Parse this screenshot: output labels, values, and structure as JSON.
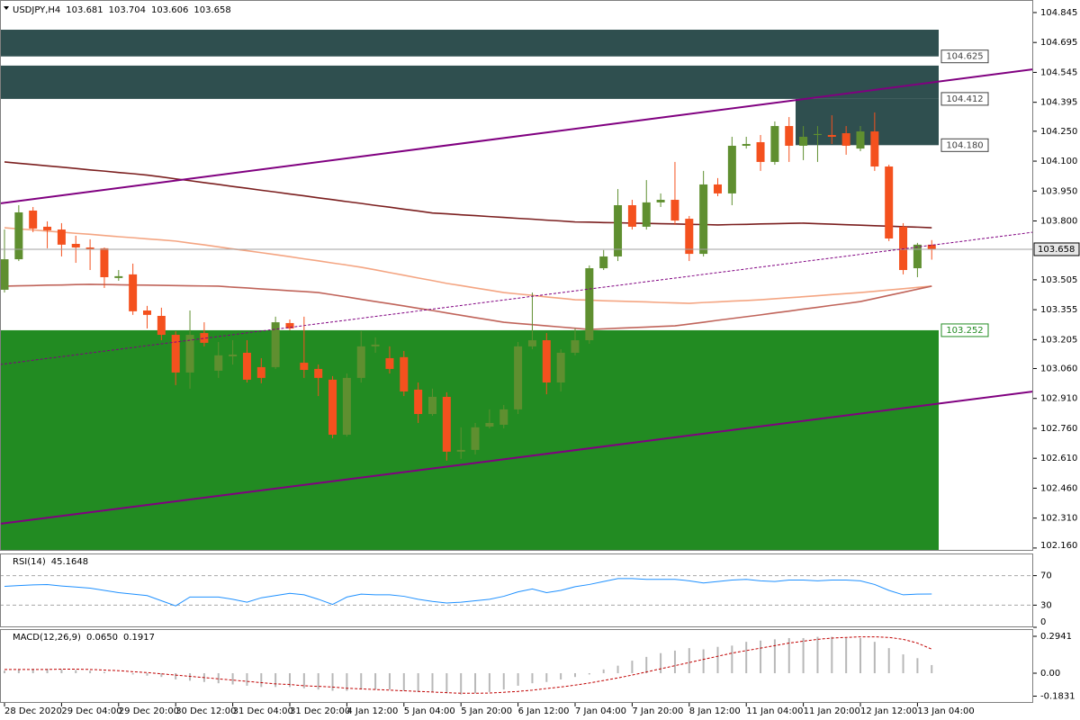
{
  "chart_data": [
    {
      "type": "candlestick",
      "title": "USDJPY,H4",
      "categories": [
        "28 Dec 2020",
        null,
        null,
        null,
        "29 Dec 04:00",
        null,
        null,
        null,
        "29 Dec 20:00",
        null,
        null,
        null,
        "30 Dec 12:00",
        null,
        null,
        null,
        "31 Dec 04:00",
        null,
        null,
        null,
        "31 Dec 20:00",
        null,
        null,
        null,
        "4 Jan 12:00",
        null,
        null,
        null,
        "5 Jan 04:00",
        null,
        null,
        null,
        "5 Jan 20:00",
        null,
        null,
        null,
        "6 Jan 12:00",
        null,
        null,
        null,
        "7 Jan 04:00",
        null,
        null,
        null,
        "7 Jan 20:00",
        null,
        null,
        null,
        "8 Jan 12:00",
        null,
        null,
        null,
        "11 Jan 04:00",
        null,
        null,
        null,
        "11 Jan 20:00",
        null,
        null,
        null,
        "12 Jan 12:00",
        null,
        null,
        null,
        "13 Jan 04:00",
        null
      ],
      "open": [
        103.455,
        103.608,
        103.852,
        103.771,
        103.757,
        103.685,
        103.667,
        103.663,
        103.514,
        103.532,
        103.351,
        103.324,
        103.229,
        103.04,
        103.238,
        103.049,
        103.121,
        103.139,
        103.067,
        103.067,
        103.288,
        103.089,
        103.058,
        103.004,
        102.728,
        103.013,
        103.171,
        103.112,
        103.117,
        102.954,
        102.832,
        102.918,
        102.643,
        102.652,
        102.769,
        102.778,
        102.855,
        103.171,
        103.202,
        102.99,
        103.139,
        103.202,
        103.563,
        103.622,
        103.879,
        103.771,
        103.893,
        103.906,
        103.811,
        103.635,
        103.983,
        103.938,
        104.177,
        104.195,
        104.096,
        104.276,
        104.177,
        104.231,
        104.231,
        104.24,
        104.163,
        104.249,
        104.073,
        103.771,
        103.563,
        103.681
      ],
      "high": [
        103.757,
        103.879,
        103.87,
        103.798,
        103.789,
        103.726,
        103.708,
        103.667,
        103.554,
        103.586,
        103.374,
        103.365,
        103.247,
        103.351,
        103.292,
        103.193,
        103.202,
        103.202,
        103.112,
        103.32,
        103.306,
        103.32,
        103.08,
        103.022,
        103.035,
        103.247,
        103.216,
        103.171,
        103.148,
        102.99,
        102.959,
        102.941,
        102.765,
        102.787,
        102.855,
        102.877,
        103.193,
        103.441,
        103.238,
        103.157,
        103.261,
        103.577,
        103.654,
        103.96,
        103.906,
        104.005,
        103.938,
        104.096,
        103.825,
        104.051,
        104.015,
        104.222,
        104.222,
        104.231,
        104.299,
        104.321,
        104.276,
        104.276,
        104.33,
        104.276,
        104.276,
        104.344,
        104.082,
        103.789,
        103.69,
        103.704
      ],
      "low": [
        103.441,
        103.599,
        103.744,
        103.663,
        103.622,
        103.59,
        103.554,
        103.464,
        103.5,
        103.329,
        103.261,
        103.202,
        102.977,
        102.959,
        103.171,
        103.013,
        103.08,
        102.99,
        102.986,
        103.058,
        103.252,
        103.013,
        102.922,
        102.71,
        102.719,
        102.99,
        103.139,
        103.035,
        102.922,
        102.787,
        102.823,
        102.598,
        102.607,
        102.629,
        102.76,
        102.76,
        102.832,
        103.157,
        102.931,
        102.945,
        103.126,
        103.184,
        103.554,
        103.599,
        103.757,
        103.757,
        103.87,
        103.78,
        103.599,
        103.622,
        103.924,
        103.879,
        104.163,
        104.051,
        104.082,
        104.096,
        104.105,
        104.096,
        104.186,
        104.132,
        104.15,
        104.051,
        103.699,
        103.532,
        103.518,
        103.606
      ],
      "close": [
        103.608,
        103.843,
        103.762,
        103.753,
        103.681,
        103.667,
        103.658,
        103.518,
        103.523,
        103.347,
        103.329,
        103.229,
        103.04,
        103.229,
        103.189,
        103.126,
        103.13,
        103.004,
        103.013,
        103.292,
        103.261,
        103.053,
        103.013,
        102.728,
        103.013,
        103.171,
        103.18,
        103.058,
        102.945,
        102.832,
        102.918,
        102.643,
        102.652,
        102.765,
        102.787,
        102.855,
        103.171,
        103.202,
        102.99,
        103.139,
        103.202,
        103.563,
        103.622,
        103.879,
        103.771,
        103.893,
        103.906,
        103.802,
        103.635,
        103.983,
        103.938,
        104.177,
        104.186,
        104.096,
        104.276,
        104.177,
        104.222,
        104.236,
        104.222,
        104.177,
        104.249,
        104.073,
        103.712,
        103.554,
        103.681,
        103.658
      ],
      "up_color": "#5f8f30",
      "down_color": "#f4511e",
      "series": [
        {
          "color": "#7b1f1f",
          "values": [
            104.096,
            104.089,
            104.083,
            104.076,
            104.07,
            104.063,
            104.056,
            104.05,
            104.043,
            104.037,
            104.03,
            104.021,
            104.011,
            104.002,
            103.992,
            103.983,
            103.973,
            103.964,
            103.954,
            103.945,
            103.935,
            103.926,
            103.916,
            103.907,
            103.897,
            103.888,
            103.878,
            103.869,
            103.859,
            103.85,
            103.84,
            103.836,
            103.831,
            103.827,
            103.822,
            103.818,
            103.813,
            103.809,
            103.804,
            103.8,
            103.795,
            103.794,
            103.792,
            103.791,
            103.789,
            103.788,
            103.786,
            103.785,
            103.783,
            103.782,
            103.78,
            103.782,
            103.783,
            103.785,
            103.786,
            103.788,
            103.789,
            103.786,
            103.784,
            103.781,
            103.779,
            103.776,
            103.774,
            103.771,
            103.769,
            103.766
          ]
        },
        {
          "color": "#f4a582",
          "values": [
            103.766,
            103.76,
            103.755,
            103.749,
            103.744,
            103.738,
            103.733,
            103.727,
            103.721,
            103.716,
            103.71,
            103.705,
            103.699,
            103.689,
            103.68,
            103.67,
            103.66,
            103.651,
            103.641,
            103.631,
            103.621,
            103.61,
            103.6,
            103.589,
            103.579,
            103.568,
            103.555,
            103.541,
            103.528,
            103.514,
            103.501,
            103.487,
            103.476,
            103.464,
            103.453,
            103.441,
            103.434,
            103.427,
            103.419,
            103.412,
            103.405,
            103.403,
            103.4,
            103.398,
            103.396,
            103.394,
            103.391,
            103.389,
            103.387,
            103.391,
            103.394,
            103.398,
            103.401,
            103.405,
            103.41,
            103.415,
            103.42,
            103.425,
            103.431,
            103.436,
            103.441,
            103.447,
            103.454,
            103.46,
            103.467,
            103.473
          ]
        },
        {
          "color": "#c0645a",
          "values": [
            103.473,
            103.475,
            103.476,
            103.478,
            103.479,
            103.481,
            103.482,
            103.481,
            103.48,
            103.479,
            103.478,
            103.477,
            103.476,
            103.475,
            103.474,
            103.473,
            103.468,
            103.464,
            103.459,
            103.455,
            103.45,
            103.446,
            103.441,
            103.43,
            103.419,
            103.407,
            103.396,
            103.385,
            103.374,
            103.362,
            103.351,
            103.339,
            103.327,
            103.315,
            103.304,
            103.292,
            103.286,
            103.28,
            103.274,
            103.268,
            103.262,
            103.256,
            103.259,
            103.262,
            103.265,
            103.268,
            103.271,
            103.274,
            103.283,
            103.292,
            103.302,
            103.311,
            103.32,
            103.329,
            103.339,
            103.348,
            103.358,
            103.367,
            103.377,
            103.386,
            103.396,
            103.411,
            103.427,
            103.442,
            103.458,
            103.473
          ]
        }
      ],
      "zones": [
        {
          "top": 104.759,
          "bottom": 104.625,
          "color": "#2f4f4f"
        },
        {
          "top": 104.579,
          "bottom": 104.412,
          "color": "#2f4f4f"
        },
        {
          "top": 104.412,
          "bottom": 104.18,
          "color": "#2f4f4f"
        },
        {
          "top": 103.252,
          "bottom": 102.146,
          "color": "#228b22"
        }
      ],
      "levels": [
        104.625,
        104.412,
        {
          "value": 104.18,
          "label": "104.180"
        },
        103.252
      ],
      "level_colors": [
        "#404040",
        "#404040",
        "#404040",
        "#228b22"
      ],
      "ylim": [
        102.146,
        104.908
      ],
      "yticks": [
        {
          "value": 102.16,
          "label": "102.160"
        },
        {
          "value": 102.31,
          "label": "102.310"
        },
        {
          "value": 102.46,
          "label": "102.460"
        },
        {
          "value": 102.61,
          "label": "102.610"
        },
        {
          "value": 102.76,
          "label": "102.760"
        },
        {
          "value": 102.91,
          "label": "102.910"
        },
        {
          "value": 103.06,
          "label": "103.060"
        },
        103.205,
        103.355,
        103.505,
        {
          "value": 103.8,
          "label": "103.800"
        },
        {
          "value": 103.95,
          "label": "103.950"
        },
        {
          "value": 104.1,
          "label": "104.100"
        },
        {
          "value": 104.25,
          "label": "104.250"
        },
        104.395,
        104.545,
        104.695,
        104.845
      ]
    },
    {
      "type": "line",
      "title": "RSI(14)",
      "series": [
        {
          "color": "#1e90ff",
          "values": [
            55.5,
            56.5,
            57.5,
            57.9,
            56,
            54.5,
            53,
            50,
            47,
            45,
            43,
            36,
            29,
            41,
            41,
            41,
            38,
            34,
            40,
            43,
            46,
            44,
            38,
            31,
            41,
            45,
            44,
            44,
            42,
            38,
            35,
            33,
            34,
            36,
            38,
            42,
            48,
            52,
            47,
            50,
            55,
            58,
            62,
            66,
            66,
            65,
            65,
            65,
            63,
            60,
            62,
            64,
            65,
            63,
            62,
            64,
            64,
            63,
            64,
            64,
            63,
            58,
            50,
            44,
            45,
            45.1648
          ]
        }
      ],
      "ylim": [
        0,
        100
      ],
      "yticks": [
        0,
        30,
        70
      ],
      "grid": true
    },
    {
      "type": "macd",
      "title": "MACD(12,26,9)",
      "series": [
        {
          "style": "histogram",
          "color": "#b8b8b8",
          "values": [
            0.02,
            0.03,
            0.035,
            0.035,
            0.03,
            0.025,
            0.02,
            0.01,
            0.0,
            -0.01,
            -0.02,
            -0.03,
            -0.05,
            -0.06,
            -0.07,
            -0.08,
            -0.09,
            -0.1,
            -0.11,
            -0.11,
            -0.11,
            -0.12,
            -0.13,
            -0.14,
            -0.14,
            -0.13,
            -0.13,
            -0.13,
            -0.14,
            -0.15,
            -0.15,
            -0.16,
            -0.17,
            -0.16,
            -0.15,
            -0.13,
            -0.1,
            -0.08,
            -0.07,
            -0.05,
            -0.03,
            -0.01,
            0.03,
            0.06,
            0.1,
            0.13,
            0.16,
            0.18,
            0.2,
            0.19,
            0.21,
            0.22,
            0.25,
            0.26,
            0.27,
            0.28,
            0.28,
            0.29,
            0.29,
            0.28,
            0.28,
            0.25,
            0.2,
            0.15,
            0.12,
            0.065
          ],
          "value_labels": [
            null,
            null,
            null,
            null,
            null,
            null,
            null,
            null,
            null,
            null,
            null,
            null,
            null,
            null,
            null,
            null,
            null,
            null,
            null,
            null,
            null,
            null,
            null,
            null,
            null,
            null,
            null,
            null,
            null,
            null,
            null,
            null,
            null,
            null,
            null,
            null,
            null,
            null,
            null,
            null,
            null,
            null,
            null,
            null,
            null,
            null,
            null,
            null,
            null,
            null,
            null,
            null,
            null,
            null,
            null,
            null,
            null,
            null,
            null,
            null,
            null,
            null,
            null,
            null,
            null,
            "0.0650"
          ]
        },
        {
          "style": "dashed",
          "color": "#c00000",
          "values": [
            0.03,
            0.03,
            0.03,
            0.03,
            0.032,
            0.032,
            0.03,
            0.025,
            0.02,
            0.012,
            0.005,
            -0.005,
            -0.015,
            -0.025,
            -0.035,
            -0.045,
            -0.055,
            -0.065,
            -0.075,
            -0.085,
            -0.09,
            -0.1,
            -0.105,
            -0.11,
            -0.12,
            -0.125,
            -0.13,
            -0.135,
            -0.14,
            -0.145,
            -0.15,
            -0.155,
            -0.16,
            -0.16,
            -0.158,
            -0.152,
            -0.145,
            -0.135,
            -0.122,
            -0.11,
            -0.095,
            -0.078,
            -0.058,
            -0.038,
            -0.015,
            0.01,
            0.035,
            0.06,
            0.085,
            0.11,
            0.135,
            0.16,
            0.18,
            0.2,
            0.22,
            0.24,
            0.255,
            0.27,
            0.28,
            0.285,
            0.29,
            0.29,
            0.285,
            0.27,
            0.24,
            0.1917
          ]
        }
      ],
      "ylim": [
        -0.2367,
        0.3515
      ],
      "yticks": [
        -0.1831,
        {
          "value": 0,
          "label": "0.00"
        },
        0.2941
      ]
    }
  ]
}
